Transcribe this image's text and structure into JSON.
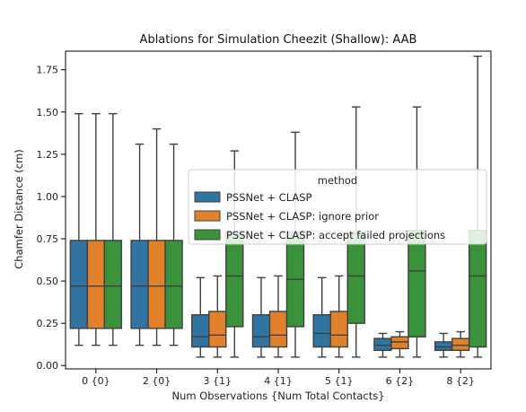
{
  "chart_data": {
    "type": "box",
    "title": "Ablations for Simulation Cheezit (Shallow): AAB",
    "xlabel": "Num Observations {Num Total Contacts}",
    "ylabel": "Chamfer Distance (cm)",
    "ylim": [
      -0.02,
      1.86
    ],
    "yticks": [
      0.0,
      0.25,
      0.5,
      0.75,
      1.0,
      1.25,
      1.5,
      1.75
    ],
    "ytick_labels": [
      "0.00",
      "0.25",
      "0.50",
      "0.75",
      "1.00",
      "1.25",
      "1.50",
      "1.75"
    ],
    "categories": [
      "0 {0}",
      "2 {0}",
      "3 {1}",
      "4 {1}",
      "5 {1}",
      "6 {2}",
      "8 {2}"
    ],
    "legend": {
      "title": "method",
      "placement": "center-right"
    },
    "series": [
      {
        "name": "PSSNet + CLASP",
        "color": "#3274a1",
        "boxes": [
          {
            "whislo": 0.12,
            "q1": 0.22,
            "med": 0.47,
            "q3": 0.74,
            "whishi": 1.49
          },
          {
            "whislo": 0.12,
            "q1": 0.22,
            "med": 0.47,
            "q3": 0.74,
            "whishi": 1.31
          },
          {
            "whislo": 0.05,
            "q1": 0.11,
            "med": 0.17,
            "q3": 0.3,
            "whishi": 0.52
          },
          {
            "whislo": 0.05,
            "q1": 0.11,
            "med": 0.17,
            "q3": 0.3,
            "whishi": 0.52
          },
          {
            "whislo": 0.05,
            "q1": 0.11,
            "med": 0.19,
            "q3": 0.3,
            "whishi": 0.52
          },
          {
            "whislo": 0.05,
            "q1": 0.09,
            "med": 0.12,
            "q3": 0.16,
            "whishi": 0.19
          },
          {
            "whislo": 0.05,
            "q1": 0.09,
            "med": 0.11,
            "q3": 0.14,
            "whishi": 0.19
          }
        ]
      },
      {
        "name": "PSSNet + CLASP: ignore prior",
        "color": "#e1812c",
        "boxes": [
          {
            "whislo": 0.12,
            "q1": 0.22,
            "med": 0.47,
            "q3": 0.74,
            "whishi": 1.49
          },
          {
            "whislo": 0.12,
            "q1": 0.22,
            "med": 0.47,
            "q3": 0.74,
            "whishi": 1.4
          },
          {
            "whislo": 0.05,
            "q1": 0.11,
            "med": 0.18,
            "q3": 0.32,
            "whishi": 0.53
          },
          {
            "whislo": 0.05,
            "q1": 0.11,
            "med": 0.18,
            "q3": 0.32,
            "whishi": 0.53
          },
          {
            "whislo": 0.05,
            "q1": 0.11,
            "med": 0.18,
            "q3": 0.32,
            "whishi": 0.53
          },
          {
            "whislo": 0.05,
            "q1": 0.1,
            "med": 0.14,
            "q3": 0.17,
            "whishi": 0.2
          },
          {
            "whislo": 0.05,
            "q1": 0.09,
            "med": 0.12,
            "q3": 0.16,
            "whishi": 0.2
          }
        ]
      },
      {
        "name": "PSSNet + CLASP: accept failed projections",
        "color": "#3a923a",
        "boxes": [
          {
            "whislo": 0.12,
            "q1": 0.22,
            "med": 0.47,
            "q3": 0.74,
            "whishi": 1.49
          },
          {
            "whislo": 0.12,
            "q1": 0.22,
            "med": 0.47,
            "q3": 0.74,
            "whishi": 1.31
          },
          {
            "whislo": 0.05,
            "q1": 0.23,
            "med": 0.53,
            "q3": 0.79,
            "whishi": 1.27
          },
          {
            "whislo": 0.05,
            "q1": 0.23,
            "med": 0.51,
            "q3": 0.79,
            "whishi": 1.38
          },
          {
            "whislo": 0.05,
            "q1": 0.25,
            "med": 0.53,
            "q3": 0.79,
            "whishi": 1.53
          },
          {
            "whislo": 0.05,
            "q1": 0.17,
            "med": 0.56,
            "q3": 0.8,
            "whishi": 1.53
          },
          {
            "whislo": 0.05,
            "q1": 0.11,
            "med": 0.53,
            "q3": 0.8,
            "whishi": 1.83
          }
        ]
      }
    ]
  }
}
